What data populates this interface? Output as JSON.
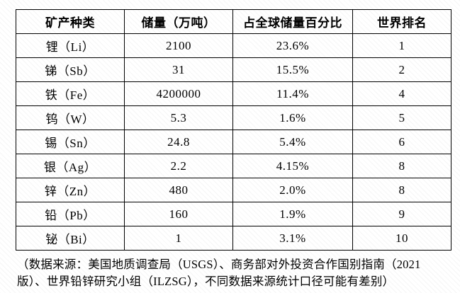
{
  "table": {
    "headers": [
      "矿产种类",
      "储量（万吨）",
      "占全球储量百分比",
      "世界排名"
    ],
    "rows": [
      [
        "锂（Li）",
        "2100",
        "23.6%",
        "1"
      ],
      [
        "锑（Sb）",
        "31",
        "15.5%",
        "2"
      ],
      [
        "铁（Fe）",
        "4200000",
        "11.4%",
        "4"
      ],
      [
        "钨（W）",
        "5.3",
        "1.6%",
        "5"
      ],
      [
        "锡（Sn）",
        "24.8",
        "5.4%",
        "6"
      ],
      [
        "银（Ag）",
        "2.2",
        "4.15%",
        "8"
      ],
      [
        "锌（Zn）",
        "480",
        "2.0%",
        "8"
      ],
      [
        "铅（Pb）",
        "160",
        "1.9%",
        "9"
      ],
      [
        "铋（Bi）",
        "1",
        "3.1%",
        "10"
      ]
    ]
  },
  "footnote": "（数据来源：美国地质调查局（USGS）、商务部对外投资合作国别指南（2021 版）、世界铅锌研究小组（ILZSG），不同数据来源统计口径可能有差别）",
  "colors": {
    "border": "#000000",
    "text": "#000000",
    "background": "#ffffff"
  }
}
